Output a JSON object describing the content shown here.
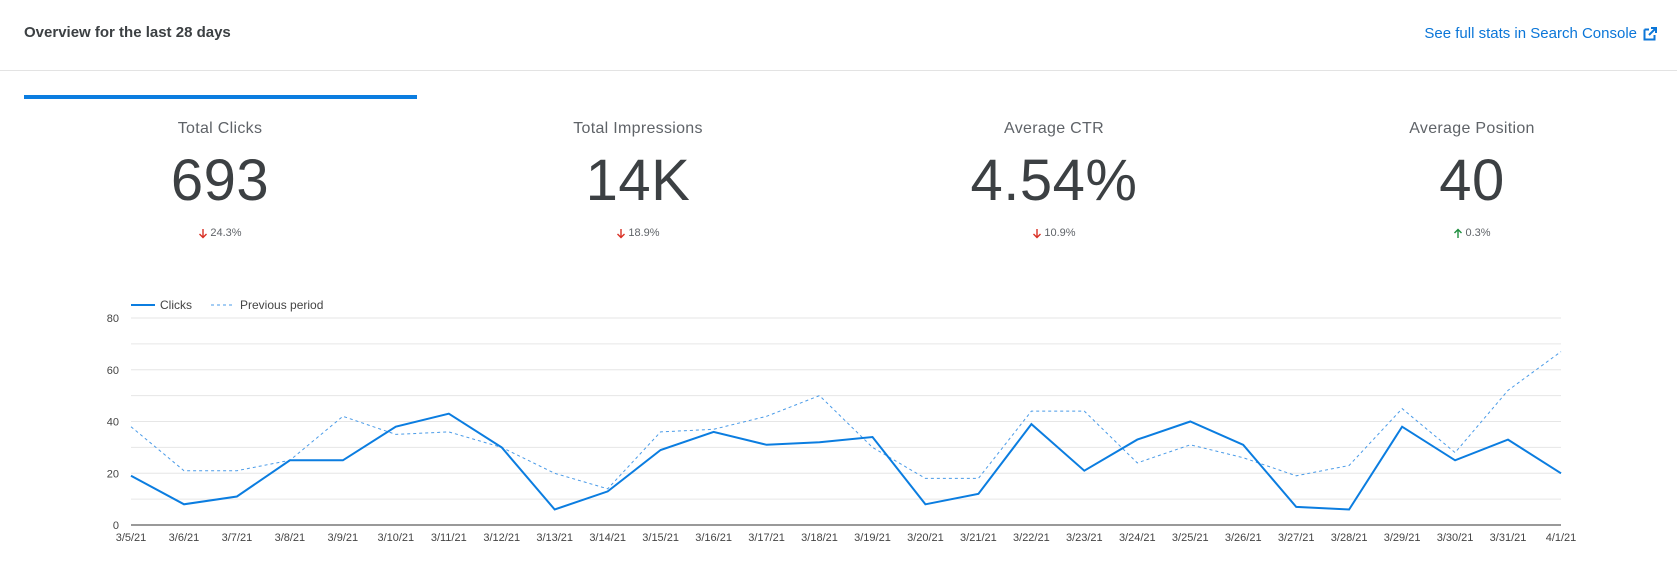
{
  "header": {
    "title": "Overview for the last 28 days",
    "link_label": "See full stats in Search Console",
    "link_icon": "external-link-icon"
  },
  "colors": {
    "accent": "#0b7de0",
    "down": "#d93025",
    "up": "#1e8e3e",
    "text": "#3c4043"
  },
  "metrics": [
    {
      "label": "Total Clicks",
      "value": "693",
      "delta": "24.3%",
      "direction": "down",
      "active": true
    },
    {
      "label": "Total Impressions",
      "value": "14K",
      "delta": "18.9%",
      "direction": "down",
      "active": false
    },
    {
      "label": "Average CTR",
      "value": "4.54%",
      "delta": "10.9%",
      "direction": "down",
      "active": false
    },
    {
      "label": "Average Position",
      "value": "40",
      "delta": "0.3%",
      "direction": "up",
      "active": false
    }
  ],
  "chart_data": {
    "type": "line",
    "title": "",
    "xlabel": "",
    "ylabel": "",
    "ylim": [
      0,
      80
    ],
    "yticks": [
      "0",
      "20",
      "40",
      "60",
      "80"
    ],
    "grid": true,
    "legend_position": "top-left",
    "categories": [
      "3/5/21",
      "3/6/21",
      "3/7/21",
      "3/8/21",
      "3/9/21",
      "3/10/21",
      "3/11/21",
      "3/12/21",
      "3/13/21",
      "3/14/21",
      "3/15/21",
      "3/16/21",
      "3/17/21",
      "3/18/21",
      "3/19/21",
      "3/20/21",
      "3/21/21",
      "3/22/21",
      "3/23/21",
      "3/24/21",
      "3/25/21",
      "3/26/21",
      "3/27/21",
      "3/28/21",
      "3/29/21",
      "3/30/21",
      "3/31/21",
      "4/1/21"
    ],
    "series": [
      {
        "name": "Clicks",
        "style": "solid",
        "values": [
          19,
          8,
          11,
          25,
          25,
          38,
          43,
          30,
          6,
          13,
          29,
          36,
          31,
          32,
          34,
          8,
          12,
          39,
          21,
          33,
          40,
          31,
          7,
          6,
          38,
          25,
          33,
          20
        ]
      },
      {
        "name": "Previous period",
        "style": "dashed",
        "values": [
          38,
          21,
          21,
          25,
          42,
          35,
          36,
          30,
          20,
          14,
          36,
          37,
          42,
          50,
          30,
          18,
          18,
          44,
          44,
          24,
          31,
          26,
          19,
          23,
          45,
          28,
          52,
          67
        ]
      }
    ]
  }
}
